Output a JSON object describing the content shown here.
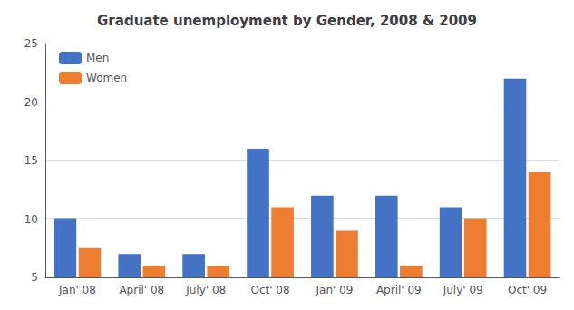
{
  "chart_data": {
    "type": "bar",
    "title": "Graduate unemployment by Gender, 2008 & 2009",
    "categories": [
      "Jan' 08",
      "April' 08",
      "July' 08",
      "Oct' 08",
      "Jan' 09",
      "April' 09",
      "July' 09",
      "Oct' 09"
    ],
    "series": [
      {
        "name": "Men",
        "color": "#4472C4",
        "values": [
          10,
          7,
          7,
          16,
          12,
          12,
          11,
          22
        ]
      },
      {
        "name": "Women",
        "color": "#ED7D31",
        "values": [
          7.5,
          6,
          6,
          11,
          9,
          6,
          10,
          14
        ]
      }
    ],
    "ylim": [
      5,
      25
    ],
    "yticks": [
      5,
      10,
      15,
      20,
      25
    ],
    "grid": true,
    "legend": "upper left"
  }
}
